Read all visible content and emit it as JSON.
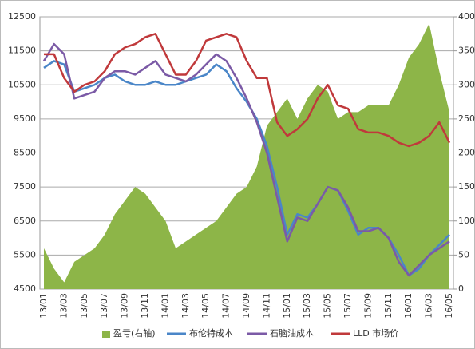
{
  "chart_data": {
    "type": "line",
    "categories": [
      "13/01",
      null,
      "13/03",
      null,
      "13/05",
      null,
      "13/07",
      null,
      "13/09",
      null,
      "13/11",
      null,
      "14/01",
      null,
      "14/03",
      null,
      "14/05",
      null,
      "14/07",
      null,
      "14/09",
      null,
      "14/11",
      null,
      "15/01",
      null,
      "15/03",
      null,
      "15/05",
      null,
      "15/07",
      null,
      "15/09",
      null,
      "15/11",
      null,
      "16/01",
      null,
      "16/03",
      null,
      "16/05"
    ],
    "series": [
      {
        "name": "盈亏(右轴)",
        "color": "#8db548",
        "axis": "y2",
        "style": "area",
        "values": [
          60,
          30,
          10,
          40,
          50,
          60,
          80,
          110,
          130,
          150,
          140,
          120,
          100,
          60,
          70,
          80,
          90,
          100,
          120,
          140,
          150,
          180,
          240,
          260,
          280,
          250,
          280,
          300,
          290,
          250,
          260,
          260,
          270,
          270,
          270,
          300,
          340,
          360,
          390,
          320,
          260
        ]
      },
      {
        "name": "布伦特成本",
        "color": "#4a86c8",
        "style": "line",
        "values": [
          11000,
          11200,
          11100,
          10300,
          10400,
          10500,
          10700,
          10800,
          10600,
          10500,
          10500,
          10600,
          10500,
          10500,
          10600,
          10700,
          10800,
          11100,
          10900,
          10400,
          10000,
          9500,
          8700,
          7500,
          6100,
          6700,
          6600,
          7000,
          7500,
          7400,
          6800,
          6100,
          6300,
          6300,
          6000,
          5500,
          4900,
          5100,
          5500,
          5800,
          6100
        ]
      },
      {
        "name": "石脑油成本",
        "color": "#7b5aa6",
        "style": "line",
        "values": [
          11200,
          11700,
          11400,
          10100,
          10200,
          10300,
          10700,
          10900,
          10900,
          10800,
          11000,
          11200,
          10800,
          10700,
          10600,
          10800,
          11100,
          11400,
          11200,
          10700,
          10100,
          9400,
          8500,
          7200,
          5900,
          6600,
          6500,
          7000,
          7500,
          7400,
          6900,
          6200,
          6200,
          6300,
          6000,
          5300,
          4900,
          5200,
          5500,
          5700,
          5900
        ]
      },
      {
        "name": "LLD 市场价",
        "color": "#c0393b",
        "style": "line",
        "values": [
          11400,
          11400,
          10700,
          10300,
          10500,
          10600,
          10900,
          11400,
          11600,
          11700,
          11900,
          12000,
          11400,
          10800,
          10800,
          11200,
          11800,
          11900,
          12000,
          11900,
          11200,
          10700,
          10700,
          9400,
          9000,
          9200,
          9500,
          10100,
          10500,
          9900,
          9800,
          9200,
          9100,
          9100,
          9000,
          8800,
          8700,
          8800,
          9000,
          9400,
          8800
        ]
      }
    ],
    "ylim": [
      4500,
      12500
    ],
    "yticks": [
      4500,
      5500,
      6500,
      7500,
      8500,
      9500,
      10500,
      11500,
      12500
    ],
    "y2lim": [
      0,
      400
    ],
    "y2ticks": [
      0,
      50,
      100,
      150,
      200,
      250,
      300,
      350,
      400
    ],
    "grid": true,
    "legend": "bottom"
  }
}
